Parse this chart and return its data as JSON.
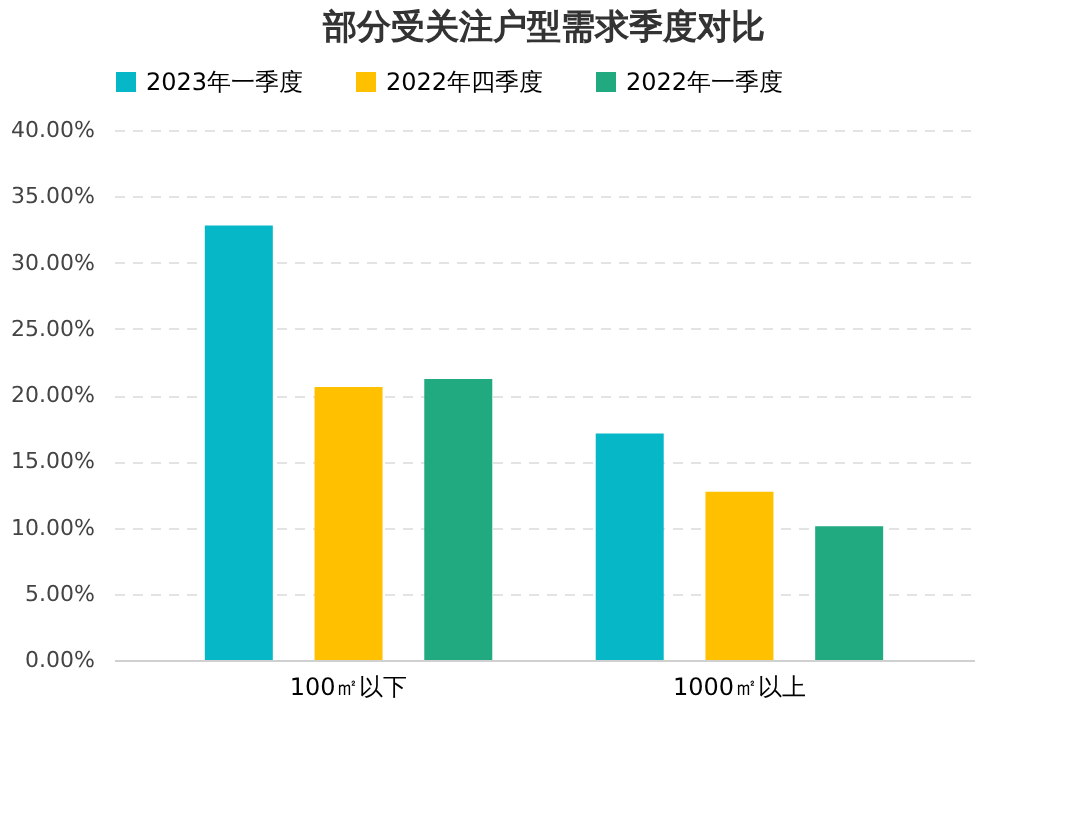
{
  "chart_data": {
    "type": "bar",
    "title": "部分受关注户型需求季度对比",
    "categories": [
      "100㎡以下",
      "1000㎡以上"
    ],
    "series": [
      {
        "name": "2023年一季度",
        "color": "#06b8c7",
        "values": [
          32.8,
          17.1
        ]
      },
      {
        "name": "2022年四季度",
        "color": "#ffc000",
        "values": [
          20.6,
          12.7
        ]
      },
      {
        "name": "2022年一季度",
        "color": "#21a97f",
        "values": [
          21.2,
          10.1
        ]
      }
    ],
    "ylim": [
      0,
      40
    ],
    "yticks": [
      {
        "value": 0,
        "label": "0.00%"
      },
      {
        "value": 5,
        "label": "5.00%"
      },
      {
        "value": 10,
        "label": "10.00%"
      },
      {
        "value": 15,
        "label": "15.00%"
      },
      {
        "value": 20,
        "label": "20.00%"
      },
      {
        "value": 25,
        "label": "25.00%"
      },
      {
        "value": 30,
        "label": "30.00%"
      },
      {
        "value": 35,
        "label": "35.00%"
      },
      {
        "value": 40,
        "label": "40.00%"
      }
    ],
    "grid": "y",
    "legend": "top"
  }
}
